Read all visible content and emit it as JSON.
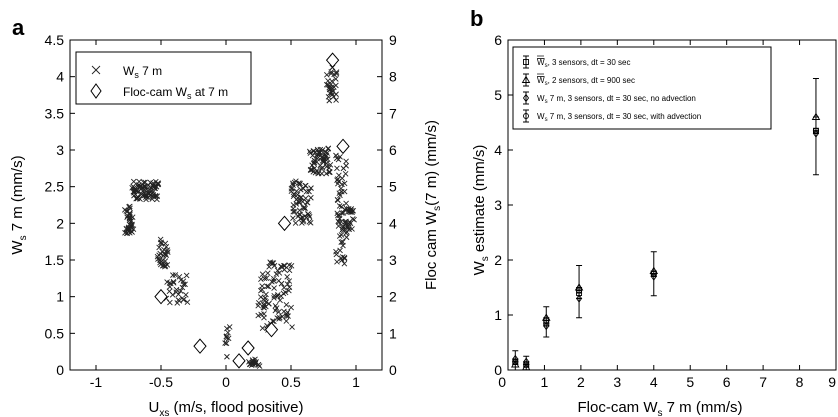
{
  "panel_a": {
    "letter": "a",
    "xlabel_main": "U",
    "xlabel_sub": "xs",
    "xlabel_rest": " (m/s, flood positive)",
    "ylabel_left_main": "W",
    "ylabel_left_sub": "s",
    "ylabel_left_rest": " 7 m (mm/s)",
    "ylabel_right_main": "Floc cam W",
    "ylabel_right_sub": "s",
    "ylabel_right_rest": "(7 m) (mm/s)",
    "legend": [
      {
        "marker": "cross",
        "main": "W",
        "sub": "s",
        "rest": " 7 m"
      },
      {
        "marker": "diamond",
        "main": "Floc-cam W",
        "sub": "s",
        "rest": " at 7 m"
      }
    ]
  },
  "panel_b": {
    "letter": "b",
    "xlabel_main": "Floc-cam W",
    "xlabel_sub": "s",
    "xlabel_rest": " 7 m (mm/s)",
    "ylabel_main": "W",
    "ylabel_sub": "s",
    "ylabel_rest": " estimate (mm/s)",
    "legend": [
      {
        "marker": "square",
        "main": "W",
        "sub": "s",
        "rest": ", 3 sensors, dt = 30 sec",
        "overline": true
      },
      {
        "marker": "triangle",
        "main": "W",
        "sub": "s",
        "rest": ", 2 sensors,  dt = 900 sec",
        "overline": true
      },
      {
        "marker": "diamond",
        "main": "W",
        "sub": "s",
        "rest": " 7 m, 3 sensors, dt = 30 sec, no advection",
        "overline": false
      },
      {
        "marker": "circle",
        "main": "W",
        "sub": "s",
        "rest": " 7 m, 3 sensors, dt = 30 sec, with advection",
        "overline": false
      }
    ]
  },
  "chart_data": [
    {
      "type": "scatter",
      "panel": "a",
      "xlim": [
        -1.2,
        1.2
      ],
      "ylim_left": [
        0,
        4.5
      ],
      "ylim_right": [
        0,
        9
      ],
      "x_ticks": [
        "-1",
        "-0.5",
        "0",
        "0.5",
        "1"
      ],
      "x_tick_values": [
        -1,
        -0.5,
        0,
        0.5,
        1
      ],
      "y_left_ticks": [
        "0",
        "0.5",
        "1",
        "1.5",
        "2",
        "2.5",
        "3",
        "3.5",
        "4",
        "4.5"
      ],
      "y_left_tick_values": [
        0,
        0.5,
        1,
        1.5,
        2,
        2.5,
        3,
        3.5,
        4,
        4.5
      ],
      "y_right_ticks": [
        "0",
        "1",
        "2",
        "3",
        "4",
        "5",
        "6",
        "7",
        "8",
        "9"
      ],
      "y_right_tick_values": [
        0,
        1,
        2,
        3,
        4,
        5,
        6,
        7,
        8,
        9
      ],
      "legend_position": "top-left",
      "series": [
        {
          "name": "W_s 7 m",
          "marker": "x",
          "axis": "left",
          "segments": [
            {
              "x_start": -0.77,
              "x_end": -0.72,
              "y_base": 2.05,
              "y_spread": 0.4,
              "count": 40
            },
            {
              "x_start": -0.72,
              "x_end": -0.6,
              "y_base": 2.45,
              "y_spread": 0.25,
              "count": 45
            },
            {
              "x_start": -0.6,
              "x_end": -0.52,
              "y_base": 2.45,
              "y_spread": 0.25,
              "count": 30
            },
            {
              "x_start": -0.52,
              "x_end": -0.45,
              "y_base": 1.6,
              "y_spread": 0.4,
              "count": 30
            },
            {
              "x_start": -0.45,
              "x_end": -0.3,
              "y_base": 1.1,
              "y_spread": 0.4,
              "count": 30
            },
            {
              "x_start": 0.0,
              "x_end": 0.02,
              "y_base": 0.4,
              "y_spread": 0.5,
              "count": 10
            },
            {
              "x_start": 0.18,
              "x_end": 0.25,
              "y_base": 0.1,
              "y_spread": 0.1,
              "count": 20
            },
            {
              "x_start": 0.25,
              "x_end": 0.5,
              "y_base": 1.0,
              "y_spread": 1.0,
              "count": 90
            },
            {
              "x_start": 0.5,
              "x_end": 0.65,
              "y_base": 2.3,
              "y_spread": 0.6,
              "count": 60
            },
            {
              "x_start": 0.65,
              "x_end": 0.8,
              "y_base": 2.85,
              "y_spread": 0.35,
              "count": 60
            },
            {
              "x_start": 0.78,
              "x_end": 0.85,
              "y_base": 3.9,
              "y_spread": 0.5,
              "count": 30
            },
            {
              "x_start": 0.85,
              "x_end": 0.92,
              "y_base": 2.2,
              "y_spread": 1.5,
              "count": 60
            },
            {
              "x_start": 0.92,
              "x_end": 0.98,
              "y_base": 2.0,
              "y_spread": 0.4,
              "count": 25
            }
          ]
        },
        {
          "name": "Floc-cam W_s at 7 m",
          "marker": "diamond",
          "axis": "right",
          "points": [
            {
              "x": -0.5,
              "y": 2.0
            },
            {
              "x": -0.2,
              "y": 0.65
            },
            {
              "x": 0.1,
              "y": 0.25
            },
            {
              "x": 0.17,
              "y": 0.6
            },
            {
              "x": 0.35,
              "y": 1.1
            },
            {
              "x": 0.45,
              "y": 4.0
            },
            {
              "x": 0.82,
              "y": 8.45
            },
            {
              "x": 0.9,
              "y": 6.1
            }
          ]
        }
      ]
    },
    {
      "type": "scatter",
      "panel": "b",
      "xlim": [
        0,
        9
      ],
      "ylim": [
        0,
        6
      ],
      "x_ticks": [
        "0",
        "1",
        "2",
        "3",
        "4",
        "5",
        "6",
        "7",
        "8",
        "9"
      ],
      "x_tick_values": [
        0,
        1,
        2,
        3,
        4,
        5,
        6,
        7,
        8,
        9
      ],
      "y_ticks": [
        "0",
        "1",
        "2",
        "3",
        "4",
        "5",
        "6"
      ],
      "y_tick_values": [
        0,
        1,
        2,
        3,
        4,
        5,
        6
      ],
      "legend_position": "top-left",
      "points": [
        {
          "x": 0.2,
          "y_values": [
            0.15,
            0.1,
            0.2,
            0.15
          ],
          "err_low": 0.0,
          "err_high": 0.35
        },
        {
          "x": 0.5,
          "y_values": [
            0.1,
            0.05,
            0.15,
            0.1
          ],
          "err_low": 0.0,
          "err_high": 0.25
        },
        {
          "x": 1.05,
          "y_values": [
            0.85,
            0.95,
            0.8,
            0.9
          ],
          "err_low": 0.6,
          "err_high": 1.15
        },
        {
          "x": 1.95,
          "y_values": [
            1.4,
            1.5,
            1.3,
            1.45
          ],
          "err_low": 0.95,
          "err_high": 1.9
        },
        {
          "x": 4.0,
          "y_values": [
            1.75,
            1.8,
            1.7,
            1.75
          ],
          "err_low": 1.35,
          "err_high": 2.15
        },
        {
          "x": 8.45,
          "y_values": [
            4.35,
            4.6,
            4.3,
            4.35
          ],
          "err_low": 3.55,
          "err_high": 5.3
        }
      ]
    }
  ]
}
